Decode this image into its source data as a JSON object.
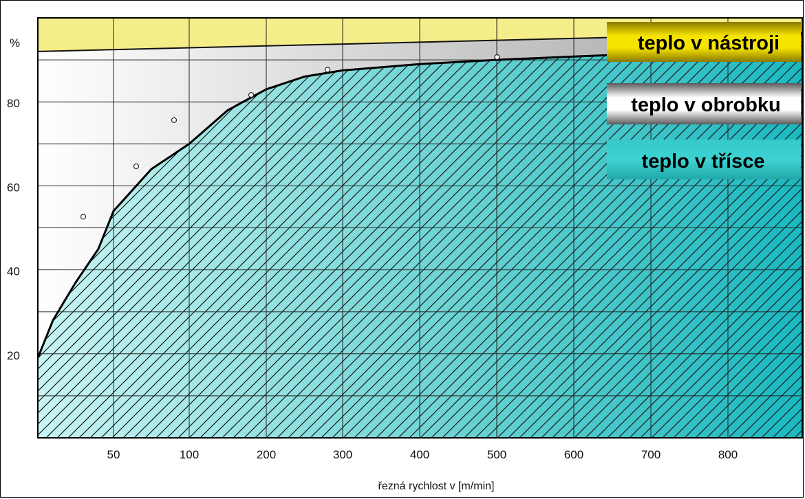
{
  "chart_data": {
    "type": "area",
    "title": "",
    "xlabel": "řezná rychlost v [m/min]",
    "ylabel": "%",
    "x_ticks": [
      "50",
      "100",
      "200",
      "300",
      "400",
      "500",
      "600",
      "700",
      "800"
    ],
    "y_ticks": [
      "20",
      "40",
      "60",
      "80"
    ],
    "ylim": [
      0,
      100
    ],
    "grid": true,
    "legend_position": "top-right",
    "legend": [
      {
        "name": "teplo v nástroji",
        "color": "#e8c800"
      },
      {
        "name": "teplo v obrobku",
        "color": "#b8b8b8"
      },
      {
        "name": "teplo v třísce",
        "color": "#2ec4c4"
      }
    ],
    "chip_tool_boundary": {
      "x": [
        0,
        800
      ],
      "y": [
        92,
        96
      ]
    },
    "chip_curve": {
      "x": [
        0,
        10,
        25,
        40,
        50,
        75,
        100,
        150,
        200,
        250,
        300,
        400,
        500,
        600,
        700,
        800
      ],
      "y": [
        19,
        28,
        37,
        45,
        54,
        64,
        70,
        78,
        83,
        86,
        87.5,
        89,
        90,
        90.8,
        91.5,
        92
      ]
    },
    "data_points": {
      "x": [
        40,
        75,
        100,
        200,
        300,
        520
      ],
      "y": [
        52,
        64,
        75,
        81,
        87,
        90
      ]
    }
  }
}
